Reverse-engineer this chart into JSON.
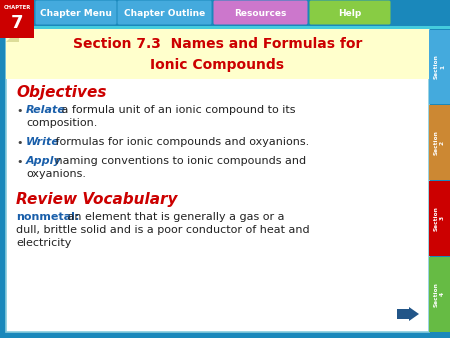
{
  "title_line1": "Section 7.3  Names and Formulas for",
  "title_line2": "Ionic Compounds",
  "title_color": "#cc0000",
  "objectives_label": "Objectives",
  "objectives_color": "#cc0000",
  "bullet_keyword_color": "#1a5faa",
  "bullet_text_color": "#222222",
  "bullets": [
    {
      "keyword": "Relate",
      "rest": " a formula unit of an ionic compound to its\ncomposition."
    },
    {
      "keyword": "Write",
      "rest": " formulas for ionic compounds and oxyanions."
    },
    {
      "keyword": "Apply",
      "rest": " naming conventions to ionic compounds and\noxyanions."
    }
  ],
  "review_label": "Review Vocabulary",
  "review_color": "#cc0000",
  "vocab_keyword": "nonmetal:",
  "vocab_keyword_color": "#1a5faa",
  "vocab_text": " an element that is generally a gas or a\ndull, brittle solid and is a poor conductor of heat and\nelectricity",
  "vocab_text_color": "#222222",
  "main_bg": "#ffffff",
  "outer_bg": "#1a88bb",
  "nav_labels": [
    "Chapter Menu",
    "Chapter Outline",
    "Resources",
    "Help"
  ],
  "nav_colors": [
    "#44aadd",
    "#44aadd",
    "#cc77cc",
    "#88cc44"
  ],
  "chapter_box_color": "#cc0000",
  "chapter_number": "7",
  "chapter_label": "CHAPTER",
  "right_tab_labels": [
    "Section\n1",
    "Section\n2",
    "Section\n3",
    "Section\n4"
  ],
  "right_tab_colors": [
    "#44aadd",
    "#cc8833",
    "#cc0000",
    "#66bb44"
  ],
  "arrow_color": "#225588",
  "title_bg_color": "#ffffcc",
  "accent_line_color": "#44ccdd"
}
